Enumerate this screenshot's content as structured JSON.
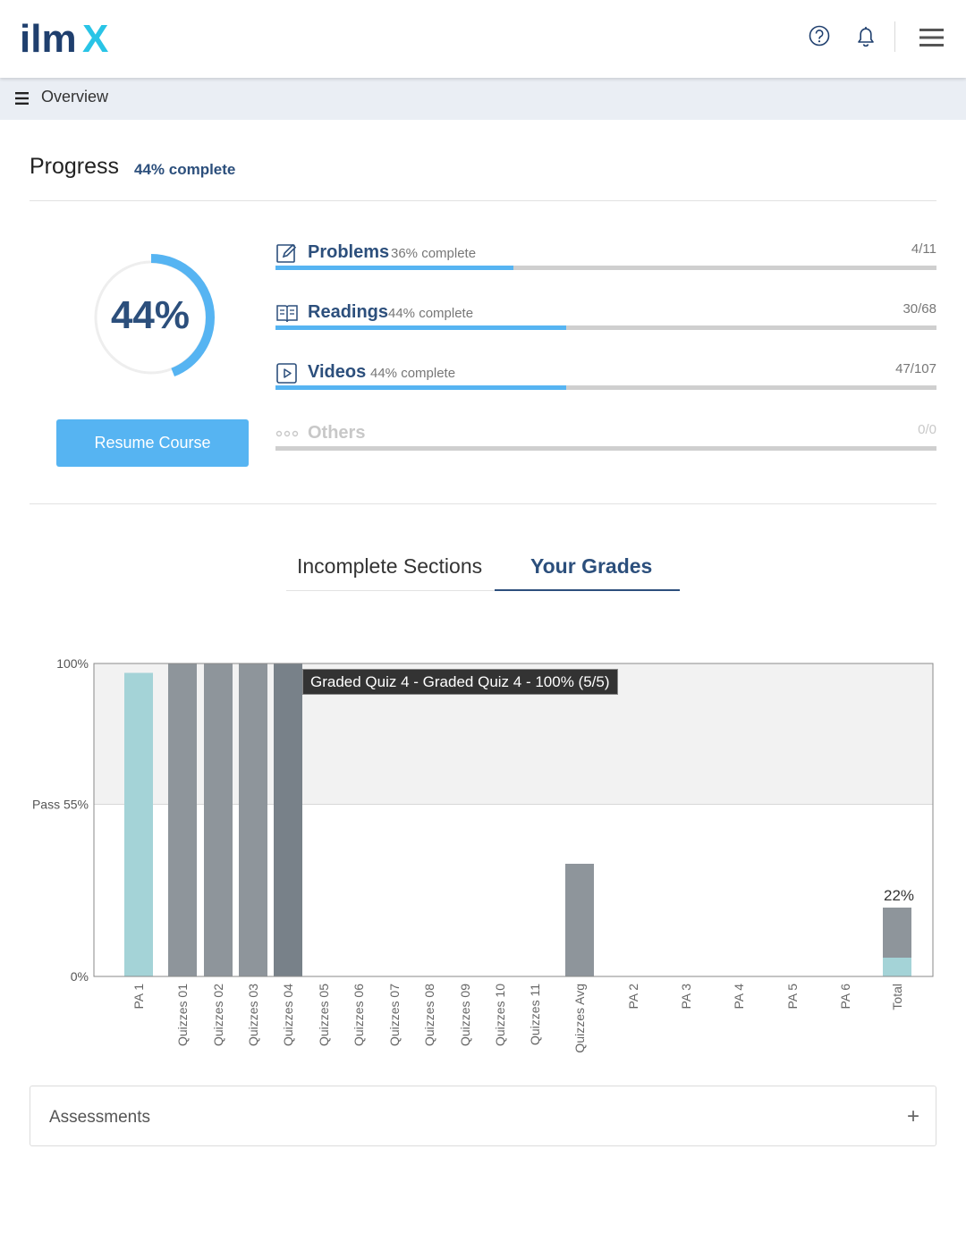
{
  "header": {
    "logo_text": "ilmX",
    "icons": [
      "help-icon",
      "bell-icon",
      "menu-icon"
    ],
    "colors": {
      "logo_dark": "#1f3f6e",
      "logo_accent": "#29c4e6"
    }
  },
  "overview": {
    "label": "Overview"
  },
  "progress": {
    "title": "Progress",
    "percent_label": "44% complete",
    "ring_value": "44%",
    "ring_fraction": 0.44,
    "resume_label": "Resume Course",
    "categories": [
      {
        "name": "Problems",
        "pct_label": "36% complete",
        "count": "4/11",
        "fraction": 0.36,
        "icon": "edit-icon"
      },
      {
        "name": "Readings",
        "pct_label": "44% complete",
        "count": "30/68",
        "fraction": 0.44,
        "icon": "book-icon"
      },
      {
        "name": "Videos",
        "pct_label": "44% complete",
        "count": "47/107",
        "fraction": 0.44,
        "icon": "play-icon"
      },
      {
        "name": "Others",
        "pct_label": "",
        "count": "0/0",
        "fraction": 0,
        "icon": "dots-icon"
      }
    ],
    "colors": {
      "accent": "#56b4f2",
      "text": "#2c4f7c",
      "track": "#cfcfcf"
    }
  },
  "tabs": [
    {
      "label": "Incomplete Sections",
      "active": false
    },
    {
      "label": "Your Grades",
      "active": true
    }
  ],
  "chart_data": {
    "type": "bar",
    "categories": [
      "PA 1",
      "Quizzes 01",
      "Quizzes 02",
      "Quizzes 03",
      "Quizzes 04",
      "Quizzes 05",
      "Quizzes 06",
      "Quizzes 07",
      "Quizzes 08",
      "Quizzes 09",
      "Quizzes 10",
      "Quizzes 11",
      "Quizzes Avg",
      "PA 2",
      "PA 3",
      "PA 4",
      "PA 5",
      "PA 6",
      "Total"
    ],
    "values": [
      97,
      100,
      100,
      100,
      100,
      0,
      0,
      0,
      0,
      0,
      0,
      0,
      36,
      0,
      0,
      0,
      0,
      0,
      22
    ],
    "total_breakdown": [
      {
        "part": "PA",
        "value": 6
      },
      {
        "part": "Quizzes",
        "value": 16
      }
    ],
    "y_tick_labels": [
      "0%",
      "Pass 55%",
      "100%"
    ],
    "y_ticks": [
      0,
      55,
      100
    ],
    "pass_threshold": 55,
    "ylim": [
      0,
      100
    ],
    "data_label": "22%",
    "tooltip": "Graded Quiz 4 - Graded Quiz 4 - 100% (5/5)",
    "highlighted_category": "Quizzes 04",
    "colors": {
      "pa": "#a4d3d7",
      "quiz": "#8e959b",
      "quiz_hover": "#788189",
      "pass_band": "#f2f2f2"
    }
  },
  "assessments": {
    "label": "Assessments",
    "toggle": "+"
  }
}
